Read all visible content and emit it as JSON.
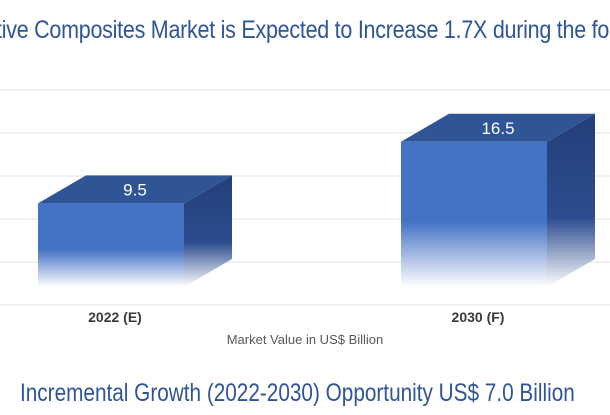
{
  "chart_data": {
    "type": "bar",
    "title": "tive Composites Market is Expected to Increase 1.7X during the fo",
    "categories": [
      "2022 (E)",
      "2030 (F)"
    ],
    "values": [
      9.5,
      16.5
    ],
    "value_labels": [
      "9.5",
      "16.5"
    ],
    "xlabel": "Market Value in US$ Billion",
    "ylabel": "",
    "ylim": [
      0,
      20
    ],
    "grid": true,
    "legend": "none",
    "footer": "Incremental Growth (2022-2030) Opportunity US$ 7.0 Billion"
  },
  "colors": {
    "bar_front": "#4472c4",
    "bar_top": "#2f5597",
    "bar_side": "#243f7a",
    "text_heading": "#2f5597",
    "gridline": "#e0e0e0"
  }
}
